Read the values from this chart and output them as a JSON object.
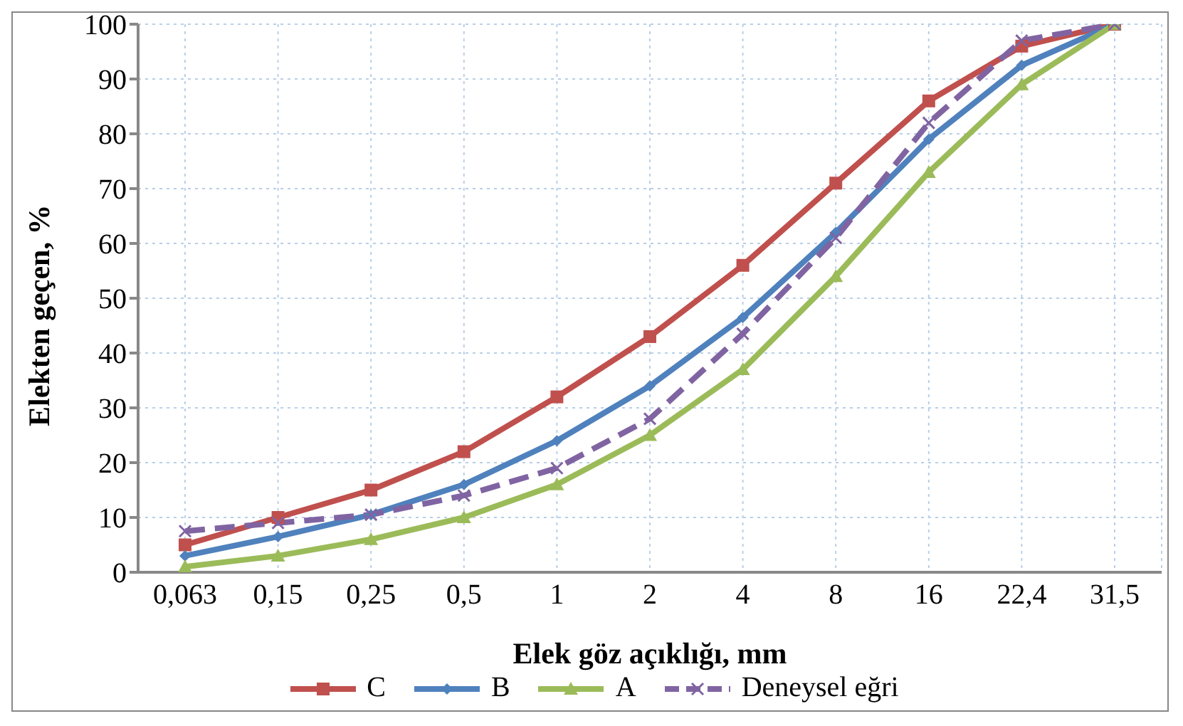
{
  "chart_data": {
    "type": "line",
    "xlabel": "Elek göz açıklığı, mm",
    "ylabel": "Elekten geçen, %",
    "categories": [
      "0,063",
      "0,15",
      "0,25",
      "0,5",
      "1",
      "2",
      "4",
      "8",
      "16",
      "22,4",
      "31,5"
    ],
    "ylim": [
      0,
      100
    ],
    "yticks": [
      0,
      10,
      20,
      30,
      40,
      50,
      60,
      70,
      80,
      90,
      100
    ],
    "grid": true,
    "legend": "bottom",
    "series": [
      {
        "name": "C",
        "color": "#c0504d",
        "marker": "square",
        "line_style": "solid",
        "values": [
          5,
          10,
          15,
          22,
          32,
          43,
          56,
          71,
          86,
          96,
          100
        ]
      },
      {
        "name": "B",
        "color": "#4f81bd",
        "marker": "diamond",
        "line_style": "solid",
        "values": [
          3,
          6.5,
          10.5,
          16,
          24,
          34,
          46.5,
          62,
          79,
          92.5,
          100
        ]
      },
      {
        "name": "A",
        "color": "#9bbb59",
        "marker": "triangle",
        "line_style": "solid",
        "values": [
          1,
          3,
          6,
          10,
          16,
          25,
          37,
          54,
          73,
          89,
          100
        ]
      },
      {
        "name": "Deneysel eğri",
        "color": "#8064a2",
        "marker": "cross",
        "line_style": "dashed",
        "values": [
          7.5,
          9,
          10.5,
          14,
          19,
          28,
          43.5,
          61,
          82,
          97,
          100
        ]
      }
    ]
  }
}
